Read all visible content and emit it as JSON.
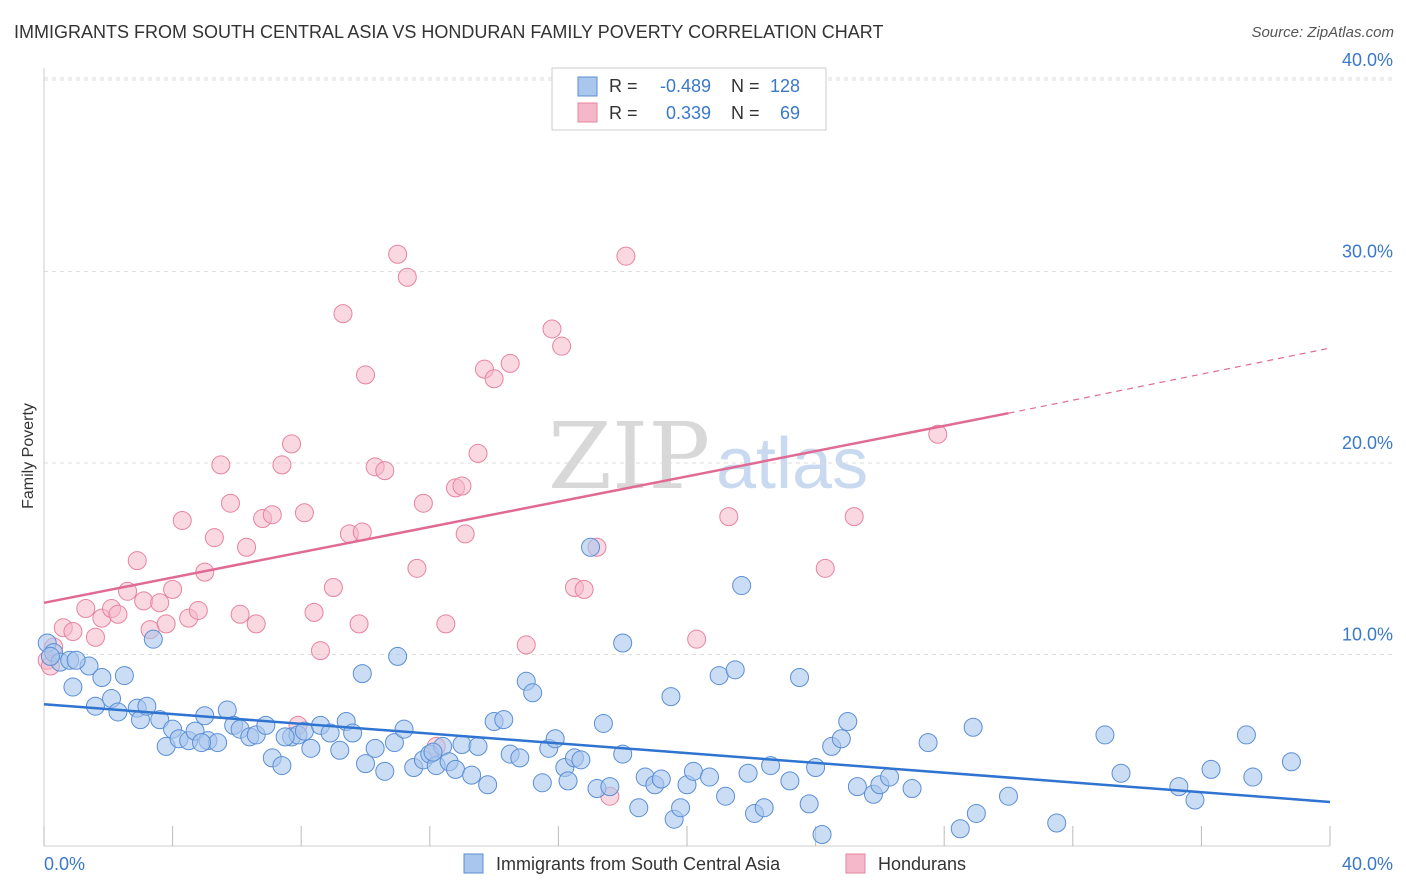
{
  "header": {
    "title": "IMMIGRANTS FROM SOUTH CENTRAL ASIA VS HONDURAN FAMILY POVERTY CORRELATION CHART",
    "source": "Source: ZipAtlas.com"
  },
  "watermark": {
    "zip": "ZIP",
    "atlas": "atlas"
  },
  "legend_stats": {
    "blue": {
      "r_label": "R =",
      "r_value": "-0.489",
      "n_label": "N =",
      "n_value": "128"
    },
    "pink": {
      "r_label": "R =",
      "r_value": "0.339",
      "n_label": "N =",
      "n_value": "69"
    }
  },
  "colors": {
    "blue_fill": "#a9c6ec",
    "blue_stroke": "#5a8fd6",
    "blue_line": "#2f74d0",
    "pink_fill": "#f4b8ca",
    "pink_stroke": "#e8839f",
    "pink_line": "#e06a93",
    "tick_text": "#3a78c8",
    "grid": "#dddddd"
  },
  "chart_data": {
    "type": "scatter",
    "title": "IMMIGRANTS FROM SOUTH CENTRAL ASIA VS HONDURAN FAMILY POVERTY CORRELATION CHART",
    "ylabel": "Family Poverty",
    "xlabel": "",
    "xlim": [
      0,
      40
    ],
    "ylim": [
      0,
      42
    ],
    "x_tick_labels": [
      "0.0%",
      "40.0%"
    ],
    "y_ticks": [
      10,
      20,
      30,
      40
    ],
    "y_tick_labels": [
      "10.0%",
      "20.0%",
      "30.0%",
      "40.0%"
    ],
    "grid": true,
    "legend_position": "bottom",
    "series": [
      {
        "name": "Immigrants from South Central Asia",
        "color": "#a9c6ec",
        "stats": {
          "R": -0.489,
          "N": 128
        },
        "trend": {
          "x": [
            0,
            40
          ],
          "y": [
            7.4,
            2.3
          ]
        },
        "points": [
          [
            0.1,
            10.6
          ],
          [
            0.3,
            10.1
          ],
          [
            0.5,
            9.6
          ],
          [
            0.8,
            9.7
          ],
          [
            0.9,
            8.3
          ],
          [
            1.4,
            9.4
          ],
          [
            1.6,
            7.3
          ],
          [
            1.8,
            8.8
          ],
          [
            2.1,
            7.7
          ],
          [
            2.3,
            7.0
          ],
          [
            2.5,
            8.9
          ],
          [
            2.9,
            7.2
          ],
          [
            3.0,
            6.6
          ],
          [
            3.2,
            7.3
          ],
          [
            3.4,
            10.8
          ],
          [
            3.6,
            6.6
          ],
          [
            3.8,
            5.2
          ],
          [
            4.0,
            6.1
          ],
          [
            4.2,
            5.6
          ],
          [
            4.5,
            5.5
          ],
          [
            4.7,
            6.0
          ],
          [
            5.0,
            6.8
          ],
          [
            5.1,
            5.5
          ],
          [
            5.4,
            5.4
          ],
          [
            5.7,
            7.1
          ],
          [
            5.9,
            6.3
          ],
          [
            6.1,
            6.1
          ],
          [
            6.4,
            5.7
          ],
          [
            6.6,
            5.8
          ],
          [
            6.9,
            6.3
          ],
          [
            7.1,
            4.6
          ],
          [
            7.4,
            4.2
          ],
          [
            7.7,
            5.7
          ],
          [
            7.9,
            5.8
          ],
          [
            8.1,
            6.0
          ],
          [
            8.3,
            5.1
          ],
          [
            8.6,
            6.3
          ],
          [
            8.9,
            5.9
          ],
          [
            9.2,
            5.0
          ],
          [
            9.4,
            6.5
          ],
          [
            9.6,
            5.9
          ],
          [
            9.9,
            9.0
          ],
          [
            10.0,
            4.3
          ],
          [
            10.3,
            5.1
          ],
          [
            10.6,
            3.9
          ],
          [
            10.9,
            5.4
          ],
          [
            11.0,
            9.9
          ],
          [
            11.2,
            6.1
          ],
          [
            11.5,
            4.1
          ],
          [
            11.8,
            4.5
          ],
          [
            12.0,
            4.8
          ],
          [
            12.2,
            4.2
          ],
          [
            12.4,
            5.2
          ],
          [
            12.6,
            4.4
          ],
          [
            12.8,
            4.0
          ],
          [
            13.0,
            5.3
          ],
          [
            13.3,
            3.7
          ],
          [
            13.5,
            5.2
          ],
          [
            13.8,
            3.2
          ],
          [
            14.0,
            6.5
          ],
          [
            14.3,
            6.6
          ],
          [
            14.5,
            4.8
          ],
          [
            14.8,
            4.6
          ],
          [
            15.0,
            8.6
          ],
          [
            15.2,
            8.0
          ],
          [
            15.5,
            3.3
          ],
          [
            15.7,
            5.1
          ],
          [
            15.9,
            5.6
          ],
          [
            16.2,
            4.1
          ],
          [
            16.5,
            4.6
          ],
          [
            16.7,
            4.5
          ],
          [
            17.0,
            15.6
          ],
          [
            17.2,
            3.0
          ],
          [
            17.4,
            6.4
          ],
          [
            17.6,
            3.1
          ],
          [
            18.0,
            4.8
          ],
          [
            18.0,
            10.6
          ],
          [
            18.5,
            2.0
          ],
          [
            18.7,
            3.6
          ],
          [
            19.0,
            3.2
          ],
          [
            19.2,
            3.5
          ],
          [
            19.5,
            7.8
          ],
          [
            19.6,
            1.4
          ],
          [
            19.8,
            2.0
          ],
          [
            20.0,
            3.2
          ],
          [
            20.2,
            3.9
          ],
          [
            20.7,
            3.6
          ],
          [
            21.0,
            8.9
          ],
          [
            21.2,
            2.6
          ],
          [
            21.5,
            9.2
          ],
          [
            21.7,
            13.6
          ],
          [
            21.9,
            3.8
          ],
          [
            22.1,
            1.7
          ],
          [
            22.4,
            2.0
          ],
          [
            22.6,
            4.2
          ],
          [
            23.2,
            3.4
          ],
          [
            23.5,
            8.8
          ],
          [
            23.8,
            2.2
          ],
          [
            24.0,
            4.1
          ],
          [
            24.2,
            0.6
          ],
          [
            24.5,
            5.2
          ],
          [
            24.8,
            5.6
          ],
          [
            25.0,
            6.5
          ],
          [
            25.3,
            3.1
          ],
          [
            25.8,
            2.7
          ],
          [
            26.0,
            3.2
          ],
          [
            26.3,
            3.6
          ],
          [
            27.0,
            3.0
          ],
          [
            27.5,
            5.4
          ],
          [
            28.5,
            0.9
          ],
          [
            28.9,
            6.2
          ],
          [
            29.0,
            1.7
          ],
          [
            30.0,
            2.6
          ],
          [
            31.5,
            1.2
          ],
          [
            33.0,
            5.8
          ],
          [
            33.5,
            3.8
          ],
          [
            35.3,
            3.1
          ],
          [
            35.8,
            2.4
          ],
          [
            36.3,
            4.0
          ],
          [
            37.4,
            5.8
          ],
          [
            37.6,
            3.6
          ],
          [
            38.8,
            4.4
          ],
          [
            0.2,
            9.9
          ],
          [
            1.0,
            9.7
          ],
          [
            4.9,
            5.4
          ],
          [
            7.5,
            5.7
          ],
          [
            12.1,
            4.9
          ],
          [
            16.3,
            3.4
          ]
        ]
      },
      {
        "name": "Hondurans",
        "color": "#f4b8ca",
        "stats": {
          "R": 0.339,
          "N": 69
        },
        "trend": {
          "x": [
            0,
            30
          ],
          "y": [
            12.7,
            22.6
          ],
          "dashed_x": [
            30,
            40
          ],
          "dashed_y": [
            22.6,
            26.0
          ]
        },
        "points": [
          [
            0.1,
            9.7
          ],
          [
            0.3,
            10.4
          ],
          [
            0.6,
            11.4
          ],
          [
            0.9,
            11.2
          ],
          [
            1.3,
            12.4
          ],
          [
            1.6,
            10.9
          ],
          [
            1.8,
            11.9
          ],
          [
            2.1,
            12.4
          ],
          [
            2.3,
            12.1
          ],
          [
            2.6,
            13.3
          ],
          [
            2.9,
            14.9
          ],
          [
            3.1,
            12.8
          ],
          [
            3.3,
            11.3
          ],
          [
            3.6,
            12.7
          ],
          [
            3.8,
            11.6
          ],
          [
            4.0,
            13.4
          ],
          [
            4.3,
            17.0
          ],
          [
            4.5,
            11.9
          ],
          [
            4.8,
            12.3
          ],
          [
            5.0,
            14.3
          ],
          [
            5.3,
            16.1
          ],
          [
            5.5,
            19.9
          ],
          [
            5.8,
            17.9
          ],
          [
            6.1,
            12.1
          ],
          [
            6.3,
            15.6
          ],
          [
            6.6,
            11.6
          ],
          [
            6.8,
            17.1
          ],
          [
            7.1,
            17.3
          ],
          [
            7.4,
            19.9
          ],
          [
            7.7,
            21.0
          ],
          [
            7.9,
            6.3
          ],
          [
            8.1,
            17.4
          ],
          [
            8.4,
            12.2
          ],
          [
            8.6,
            10.2
          ],
          [
            9.0,
            13.5
          ],
          [
            9.3,
            27.8
          ],
          [
            9.5,
            16.3
          ],
          [
            9.8,
            11.6
          ],
          [
            10.0,
            24.6
          ],
          [
            10.3,
            19.8
          ],
          [
            10.6,
            19.6
          ],
          [
            11.0,
            30.9
          ],
          [
            11.3,
            29.7
          ],
          [
            11.6,
            14.5
          ],
          [
            11.8,
            17.9
          ],
          [
            12.2,
            5.2
          ],
          [
            12.5,
            11.6
          ],
          [
            12.8,
            18.7
          ],
          [
            13.0,
            18.8
          ],
          [
            13.5,
            20.5
          ],
          [
            13.7,
            24.9
          ],
          [
            14.0,
            24.4
          ],
          [
            14.5,
            25.2
          ],
          [
            15.0,
            10.5
          ],
          [
            15.8,
            27.0
          ],
          [
            16.1,
            26.1
          ],
          [
            16.5,
            13.5
          ],
          [
            16.8,
            13.4
          ],
          [
            17.2,
            15.6
          ],
          [
            17.6,
            2.6
          ],
          [
            18.1,
            30.8
          ],
          [
            20.3,
            10.8
          ],
          [
            21.3,
            17.2
          ],
          [
            24.3,
            14.5
          ],
          [
            25.2,
            17.2
          ],
          [
            27.8,
            21.5
          ],
          [
            0.2,
            9.4
          ],
          [
            9.9,
            16.4
          ],
          [
            13.1,
            16.3
          ]
        ]
      }
    ]
  },
  "bottom_legend": {
    "blue_label": "Immigrants from South Central Asia",
    "pink_label": "Hondurans"
  }
}
